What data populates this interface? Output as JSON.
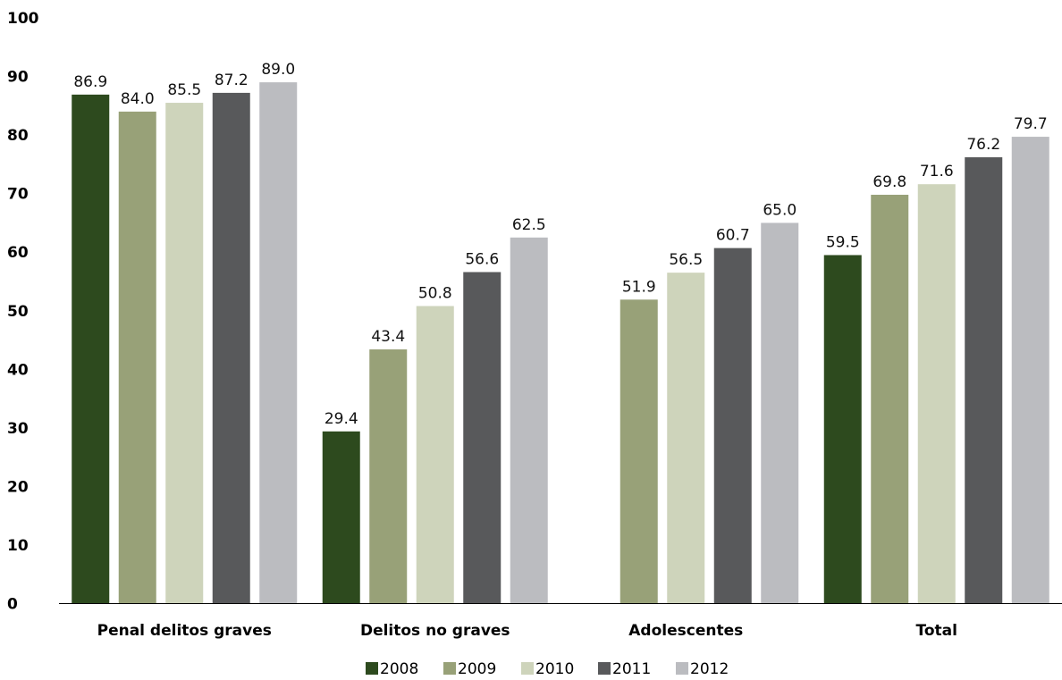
{
  "chart_data": {
    "type": "bar",
    "categories": [
      "Penal delitos graves",
      "Delitos no graves",
      "Adolescentes",
      "Total"
    ],
    "series": [
      {
        "name": "2008",
        "color": "#2d4a1e",
        "values": [
          86.9,
          29.4,
          null,
          59.5
        ]
      },
      {
        "name": "2009",
        "color": "#98a178",
        "values": [
          84.0,
          43.4,
          51.9,
          69.8
        ]
      },
      {
        "name": "2010",
        "color": "#ced4bb",
        "values": [
          85.5,
          50.8,
          56.5,
          71.6
        ]
      },
      {
        "name": "2011",
        "color": "#58595b",
        "values": [
          87.2,
          56.6,
          60.7,
          76.2
        ]
      },
      {
        "name": "2012",
        "color": "#bbbcc0",
        "values": [
          89.0,
          62.5,
          65.0,
          79.7
        ]
      }
    ],
    "ylim": [
      0,
      100
    ],
    "yticks": [
      "0",
      "10",
      "20",
      "30",
      "40",
      "50",
      "60",
      "70",
      "80",
      "90",
      "100"
    ],
    "title": "",
    "xlabel": "",
    "ylabel": "",
    "grid": false,
    "legend_position": "bottom"
  }
}
